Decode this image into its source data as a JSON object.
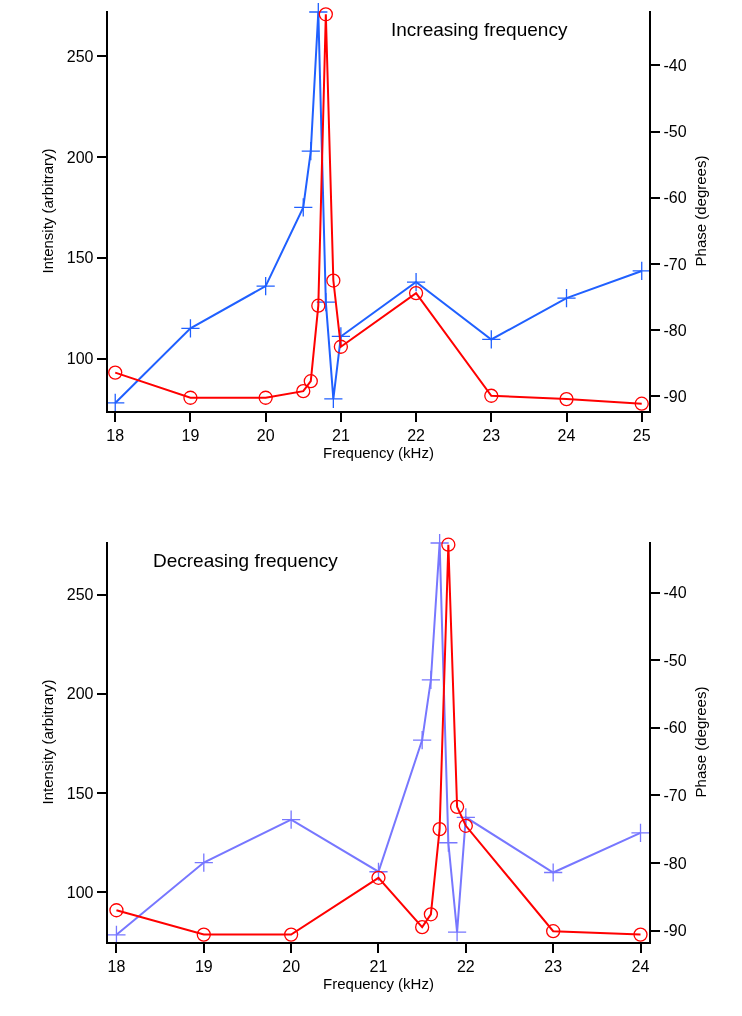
{
  "chart_data": [
    {
      "type": "line",
      "title": "Increasing frequency",
      "xlabel": "Frequency (kHz)",
      "ylabel": "Intensity (arbitrary)",
      "y2label": "Phase (degrees)",
      "x": [
        18,
        19,
        20,
        20.5,
        20.6,
        20.7,
        20.8,
        20.9,
        21,
        22,
        23,
        24,
        25
      ],
      "series": [
        {
          "color": "#2060ff",
          "marker": "cross",
          "values": [
            78,
            115,
            136,
            175,
            203,
            272,
            128,
            80,
            111,
            138,
            109.5,
            130,
            143.5
          ]
        },
        {
          "color": "#ff0000",
          "marker": "circle",
          "axis": "y2",
          "values": [
            -86.4,
            -90.2,
            -90.2,
            -89.2,
            -87.7,
            -76.3,
            -32.3,
            -72.5,
            -82.5,
            -74.4,
            -89.9,
            -90.4,
            -91.1
          ]
        }
      ],
      "xlim": [
        17.9,
        25.1
      ],
      "xticks": [
        18,
        19,
        20,
        21,
        22,
        23,
        24,
        25
      ],
      "ylim": [
        74,
        272.5
      ],
      "yticks": [
        100,
        150,
        200,
        250
      ],
      "y2lim": [
        -92.2,
        -31.8
      ],
      "y2ticks": [
        -90,
        -80,
        -70,
        -60,
        -50,
        -40
      ],
      "line_style": "solid"
    },
    {
      "type": "line",
      "title": "Decreasing frequency",
      "xlabel": "Frequency (kHz)",
      "ylabel": "Intensity (arbitrary)",
      "y2label": "Phase (degrees)",
      "x": [
        18,
        19,
        20,
        21,
        21.5,
        21.6,
        21.7,
        21.8,
        21.9,
        22,
        23,
        24
      ],
      "series": [
        {
          "color": "#7777ff",
          "marker": "cross",
          "values": [
            78.6,
            115,
            136.6,
            110.4,
            176.7,
            207,
            276,
            125,
            80,
            137.8,
            110,
            130
          ]
        },
        {
          "color": "#ff0000",
          "marker": "circle",
          "axis": "y2",
          "values": [
            -87.0,
            -90.6,
            -90.6,
            -82.2,
            -89.5,
            -87.6,
            -75.0,
            -32.9,
            -71.7,
            -74.5,
            -90.1,
            -90.6
          ]
        }
      ],
      "xlim": [
        17.9,
        24.1
      ],
      "xticks": [
        18,
        19,
        20,
        21,
        22,
        23,
        24
      ],
      "ylim": [
        75,
        276.5
      ],
      "yticks": [
        100,
        150,
        200,
        250
      ],
      "y2lim": [
        -91.7,
        -32.5
      ],
      "y2ticks": [
        -90,
        -80,
        -70,
        -60,
        -50,
        -40
      ],
      "line_style": "solid"
    }
  ]
}
